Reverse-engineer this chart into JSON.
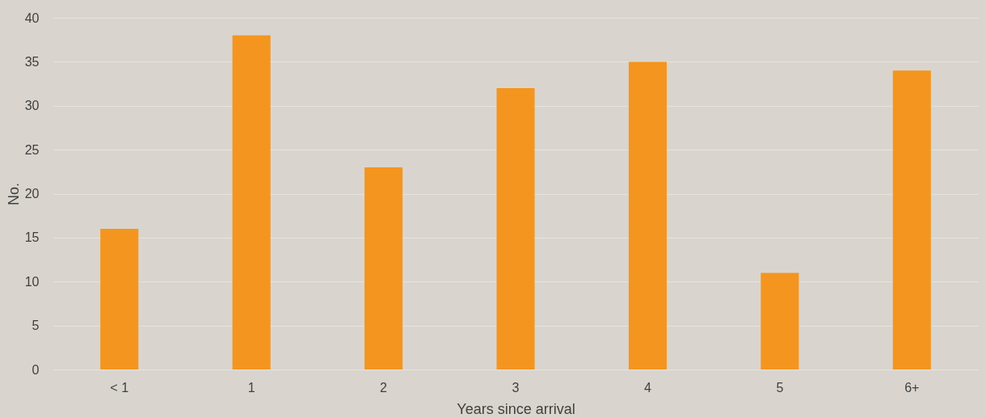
{
  "chart_data": {
    "type": "bar",
    "xlabel": "Years since arrival",
    "ylabel": "No.",
    "categories": [
      "< 1",
      "1",
      "2",
      "3",
      "4",
      "5",
      "6+"
    ],
    "values": [
      16,
      38,
      23,
      32,
      35,
      11,
      34
    ],
    "color": "#f4951f",
    "ylim": [
      0,
      40
    ],
    "yticks": [
      0,
      5,
      10,
      15,
      20,
      25,
      30,
      35,
      40
    ],
    "grid": "y"
  }
}
